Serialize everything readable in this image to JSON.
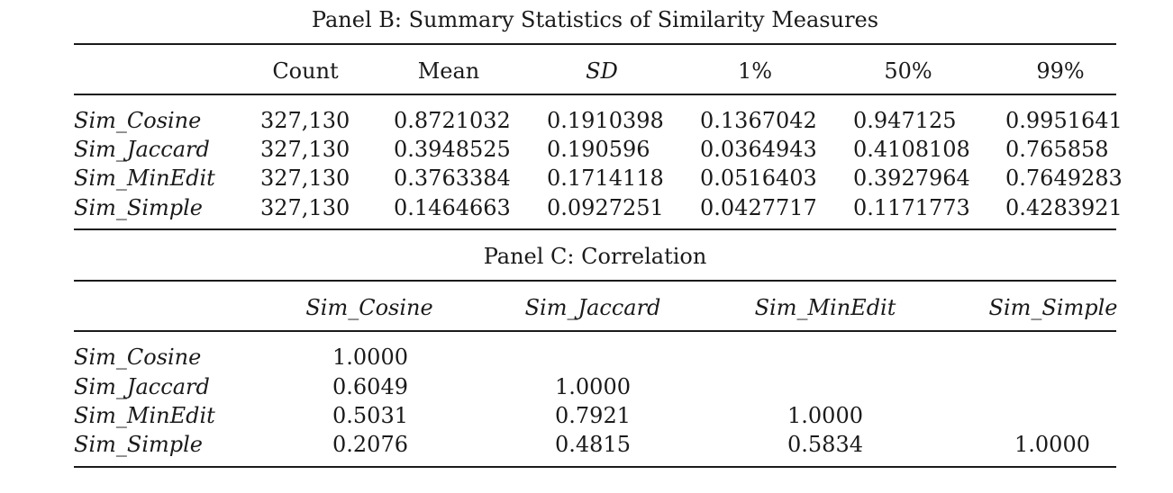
{
  "panel_b": {
    "title": "Panel B: Summary Statistics of Similarity Measures",
    "headers": [
      "Count",
      "Mean",
      "SD",
      "1%",
      "50%",
      "99%"
    ],
    "rows": [
      {
        "label": "Sim_Cosine",
        "values": [
          "327,130",
          "0.8721032",
          "0.1910398",
          "0.1367042",
          "0.947125",
          "0.9951641"
        ]
      },
      {
        "label": "Sim_Jaccard",
        "values": [
          "327,130",
          "0.3948525",
          "0.190596",
          "0.0364943",
          "0.4108108",
          "0.765858"
        ]
      },
      {
        "label": "Sim_MinEdit",
        "values": [
          "327,130",
          "0.3763384",
          "0.1714118",
          "0.0516403",
          "0.3927964",
          "0.7649283"
        ]
      },
      {
        "label": "Sim_Simple",
        "values": [
          "327,130",
          "0.1464663",
          "0.0927251",
          "0.0427717",
          "0.1171773",
          "0.4283921"
        ]
      }
    ]
  },
  "panel_c": {
    "title": "Panel C: Correlation",
    "headers": [
      "Sim_Cosine",
      "Sim_Jaccard",
      "Sim_MinEdit",
      "Sim_Simple"
    ],
    "rows": [
      {
        "label": "Sim_Cosine",
        "values": [
          "1.0000",
          "",
          "",
          ""
        ]
      },
      {
        "label": "Sim_Jaccard",
        "values": [
          "0.6049",
          "1.0000",
          "",
          ""
        ]
      },
      {
        "label": "Sim_MinEdit",
        "values": [
          "0.5031",
          "0.7921",
          "1.0000",
          ""
        ]
      },
      {
        "label": "Sim_Simple",
        "values": [
          "0.2076",
          "0.4815",
          "0.5834",
          "1.0000"
        ]
      }
    ]
  }
}
